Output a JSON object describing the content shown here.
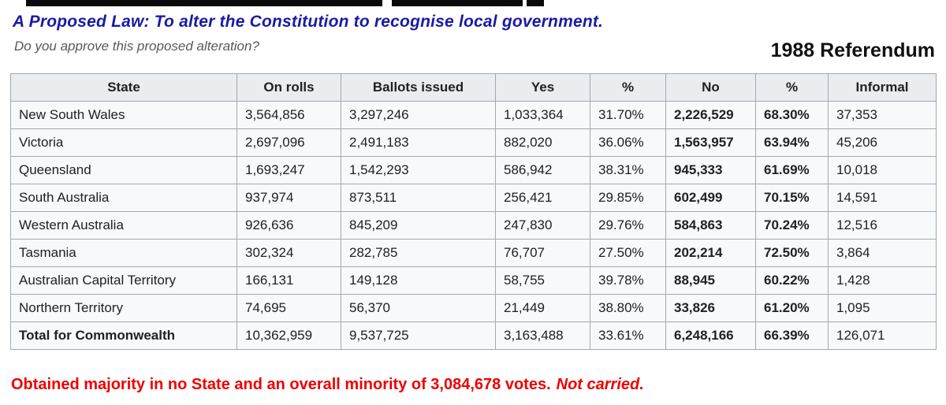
{
  "header": {
    "title": "A Proposed Law: To alter the Constitution to recognise local government.",
    "subtitle": "Do you approve this proposed alteration?",
    "year_label": "1988 Referendum"
  },
  "table": {
    "headers": [
      "State",
      "On rolls",
      "Ballots issued",
      "Yes",
      "%",
      "No",
      "%",
      "Informal"
    ],
    "rows": [
      [
        "New South Wales",
        "3,564,856",
        "3,297,246",
        "1,033,364",
        "31.70%",
        "2,226,529",
        "68.30%",
        "37,353"
      ],
      [
        "Victoria",
        "2,697,096",
        "2,491,183",
        "882,020",
        "36.06%",
        "1,563,957",
        "63.94%",
        "45,206"
      ],
      [
        "Queensland",
        "1,693,247",
        "1,542,293",
        "586,942",
        "38.31%",
        "945,333",
        "61.69%",
        "10,018"
      ],
      [
        "South Australia",
        "937,974",
        "873,511",
        "256,421",
        "29.85%",
        "602,499",
        "70.15%",
        "14,591"
      ],
      [
        "Western Australia",
        "926,636",
        "845,209",
        "247,830",
        "29.76%",
        "584,863",
        "70.24%",
        "12,516"
      ],
      [
        "Tasmania",
        "302,324",
        "282,785",
        "76,707",
        "27.50%",
        "202,214",
        "72.50%",
        "3,864"
      ],
      [
        "Australian Capital Territory",
        "166,131",
        "149,128",
        "58,755",
        "39.78%",
        "88,945",
        "60.22%",
        "1,428"
      ],
      [
        "Northern Territory",
        "74,695",
        "56,370",
        "21,449",
        "38.80%",
        "33,826",
        "61.20%",
        "1,095"
      ]
    ],
    "total_row": [
      "Total for Commonwealth",
      "10,362,959",
      "9,537,725",
      "3,163,488",
      "33.61%",
      "6,248,166",
      "66.39%",
      "126,071"
    ]
  },
  "footer": {
    "result_text": "Obtained majority in no State and an overall minority of 3,084,678 votes.",
    "result_emphasis": "Not carried."
  },
  "colors": {
    "title_blue": "#1a1aa6",
    "subtitle_gray": "#595959",
    "result_red": "#ee0000",
    "header_bg": "#eaecf0",
    "row_bg": "#f8f9fa",
    "border": "#a2a9b1"
  }
}
